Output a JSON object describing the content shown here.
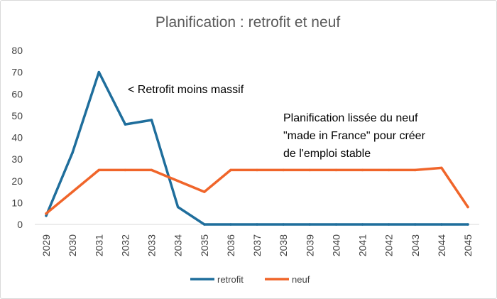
{
  "chart_data": {
    "type": "line",
    "title": "Planification : retrofit et neuf",
    "xlabel": "",
    "ylabel": "",
    "categories": [
      "2029",
      "2030",
      "2031",
      "2032",
      "2033",
      "2034",
      "2035",
      "2036",
      "2037",
      "2038",
      "2039",
      "2040",
      "2041",
      "2042",
      "2043",
      "2044",
      "2045"
    ],
    "ylim": [
      0,
      80
    ],
    "yticks": [
      "0",
      "10",
      "20",
      "30",
      "40",
      "50",
      "60",
      "70",
      "80"
    ],
    "grid": false,
    "legend_position": "bottom",
    "series": [
      {
        "name": "retrofit",
        "color": "#1F6E9C",
        "values": [
          4,
          33,
          70,
          46,
          48,
          8,
          0,
          0,
          0,
          0,
          0,
          0,
          0,
          0,
          0,
          0,
          0
        ]
      },
      {
        "name": "neuf",
        "color": "#F0652A",
        "values": [
          5,
          15,
          25,
          25,
          25,
          20,
          15,
          25,
          25,
          25,
          25,
          25,
          25,
          25,
          25,
          26,
          8
        ]
      }
    ],
    "annotations": [
      {
        "lines": [
          "< Retrofit moins massif"
        ]
      },
      {
        "lines": [
          "Planification lissée du neuf",
          "\"made in France\" pour créer",
          "de l'emploi stable"
        ]
      }
    ]
  }
}
